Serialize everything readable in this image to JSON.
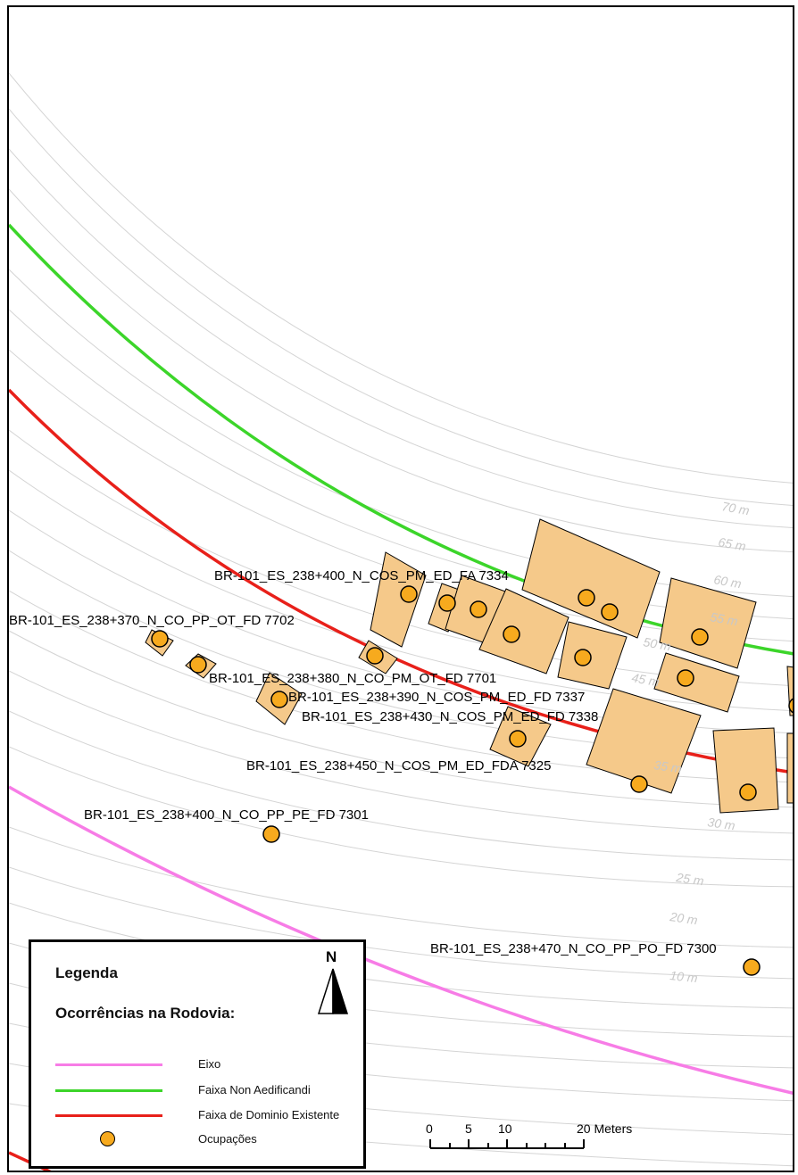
{
  "map": {
    "occurrence_labels": [
      "BR-101_ES_238+400_N_COS_PM_ED_FA 7334",
      "BR-101_ES_238+370_N_CO_PP_OT_FD 7702",
      "BR-101_ES_238+380_N_CO_PM_OT_FD 7701",
      "BR-101_ES_238+390_N_COS_PM_ED_FD 7337",
      "BR-101_ES_238+430_N_COS_PM_ED_FD 7338",
      "BR-101_ES_238+450_N_COS_PM_ED_FDA 7325",
      "BR-101_ES_238+400_N_CO_PP_PE_FD 7301",
      "BR-101_ES_238+470_N_CO_PP_PO_FD 7300"
    ],
    "distance_labels": [
      "70 m",
      "65 m",
      "60 m",
      "55 m",
      "50 m",
      "45 m",
      "35 m",
      "30 m",
      "25 m",
      "20 m",
      "10 m"
    ],
    "colors": {
      "eixo": "#f77ce6",
      "non_aedificandi": "#3cd52a",
      "dominio": "#e8201a",
      "building_fill": "#f5c98a",
      "occupation_point": "#f7aa1e",
      "buffer_line": "#d4d4d4"
    }
  },
  "legend": {
    "title": "Legenda",
    "subtitle": "Ocorrências na Rodovia:",
    "items": [
      {
        "label": "Eixo",
        "symbol": "line",
        "color": "#f77ce6"
      },
      {
        "label": "Faixa Non Aedificandi",
        "symbol": "line",
        "color": "#3cd52a"
      },
      {
        "label": "Faixa de Dominio Existente",
        "symbol": "line",
        "color": "#e8201a"
      },
      {
        "label": "Ocupações",
        "symbol": "point",
        "color": "#f7aa1e"
      }
    ],
    "north_label": "N"
  },
  "scale_bar": {
    "ticks": [
      "0",
      "5",
      "10",
      "20 Meters"
    ]
  }
}
